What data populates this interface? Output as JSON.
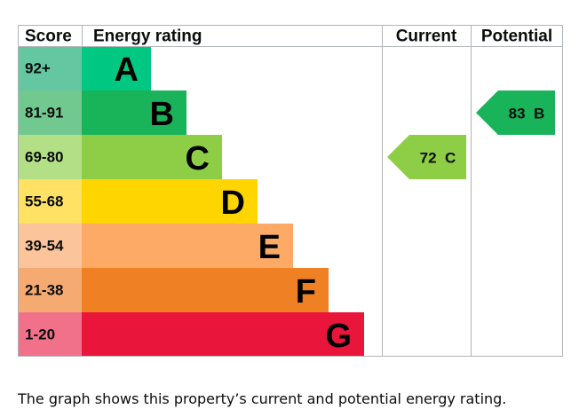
{
  "chart_data": {
    "type": "bar",
    "headers": {
      "score": "Score",
      "rating": "Energy rating",
      "current": "Current",
      "potential": "Potential"
    },
    "bands": [
      {
        "range": "92+",
        "letter": "A",
        "color": "#00c781",
        "score_color": "#64c7a2"
      },
      {
        "range": "81-91",
        "letter": "B",
        "color": "#19b459",
        "score_color": "#72c98f"
      },
      {
        "range": "69-80",
        "letter": "C",
        "color": "#8dce46",
        "score_color": "#b3df86"
      },
      {
        "range": "55-68",
        "letter": "D",
        "color": "#ffd500",
        "score_color": "#ffe264"
      },
      {
        "range": "39-54",
        "letter": "E",
        "color": "#fcaa65",
        "score_color": "#fcc49a"
      },
      {
        "range": "21-38",
        "letter": "F",
        "color": "#ef8023",
        "score_color": "#f4aa70"
      },
      {
        "range": "1-20",
        "letter": "G",
        "color": "#e9153b",
        "score_color": "#f1718a"
      }
    ],
    "current": {
      "value": 72,
      "band": "C",
      "label": "72  C",
      "color": "#8dce46"
    },
    "potential": {
      "value": 83,
      "band": "B",
      "label": "83  B",
      "color": "#19b459"
    }
  },
  "caption": "The graph shows this property’s current and potential energy rating."
}
